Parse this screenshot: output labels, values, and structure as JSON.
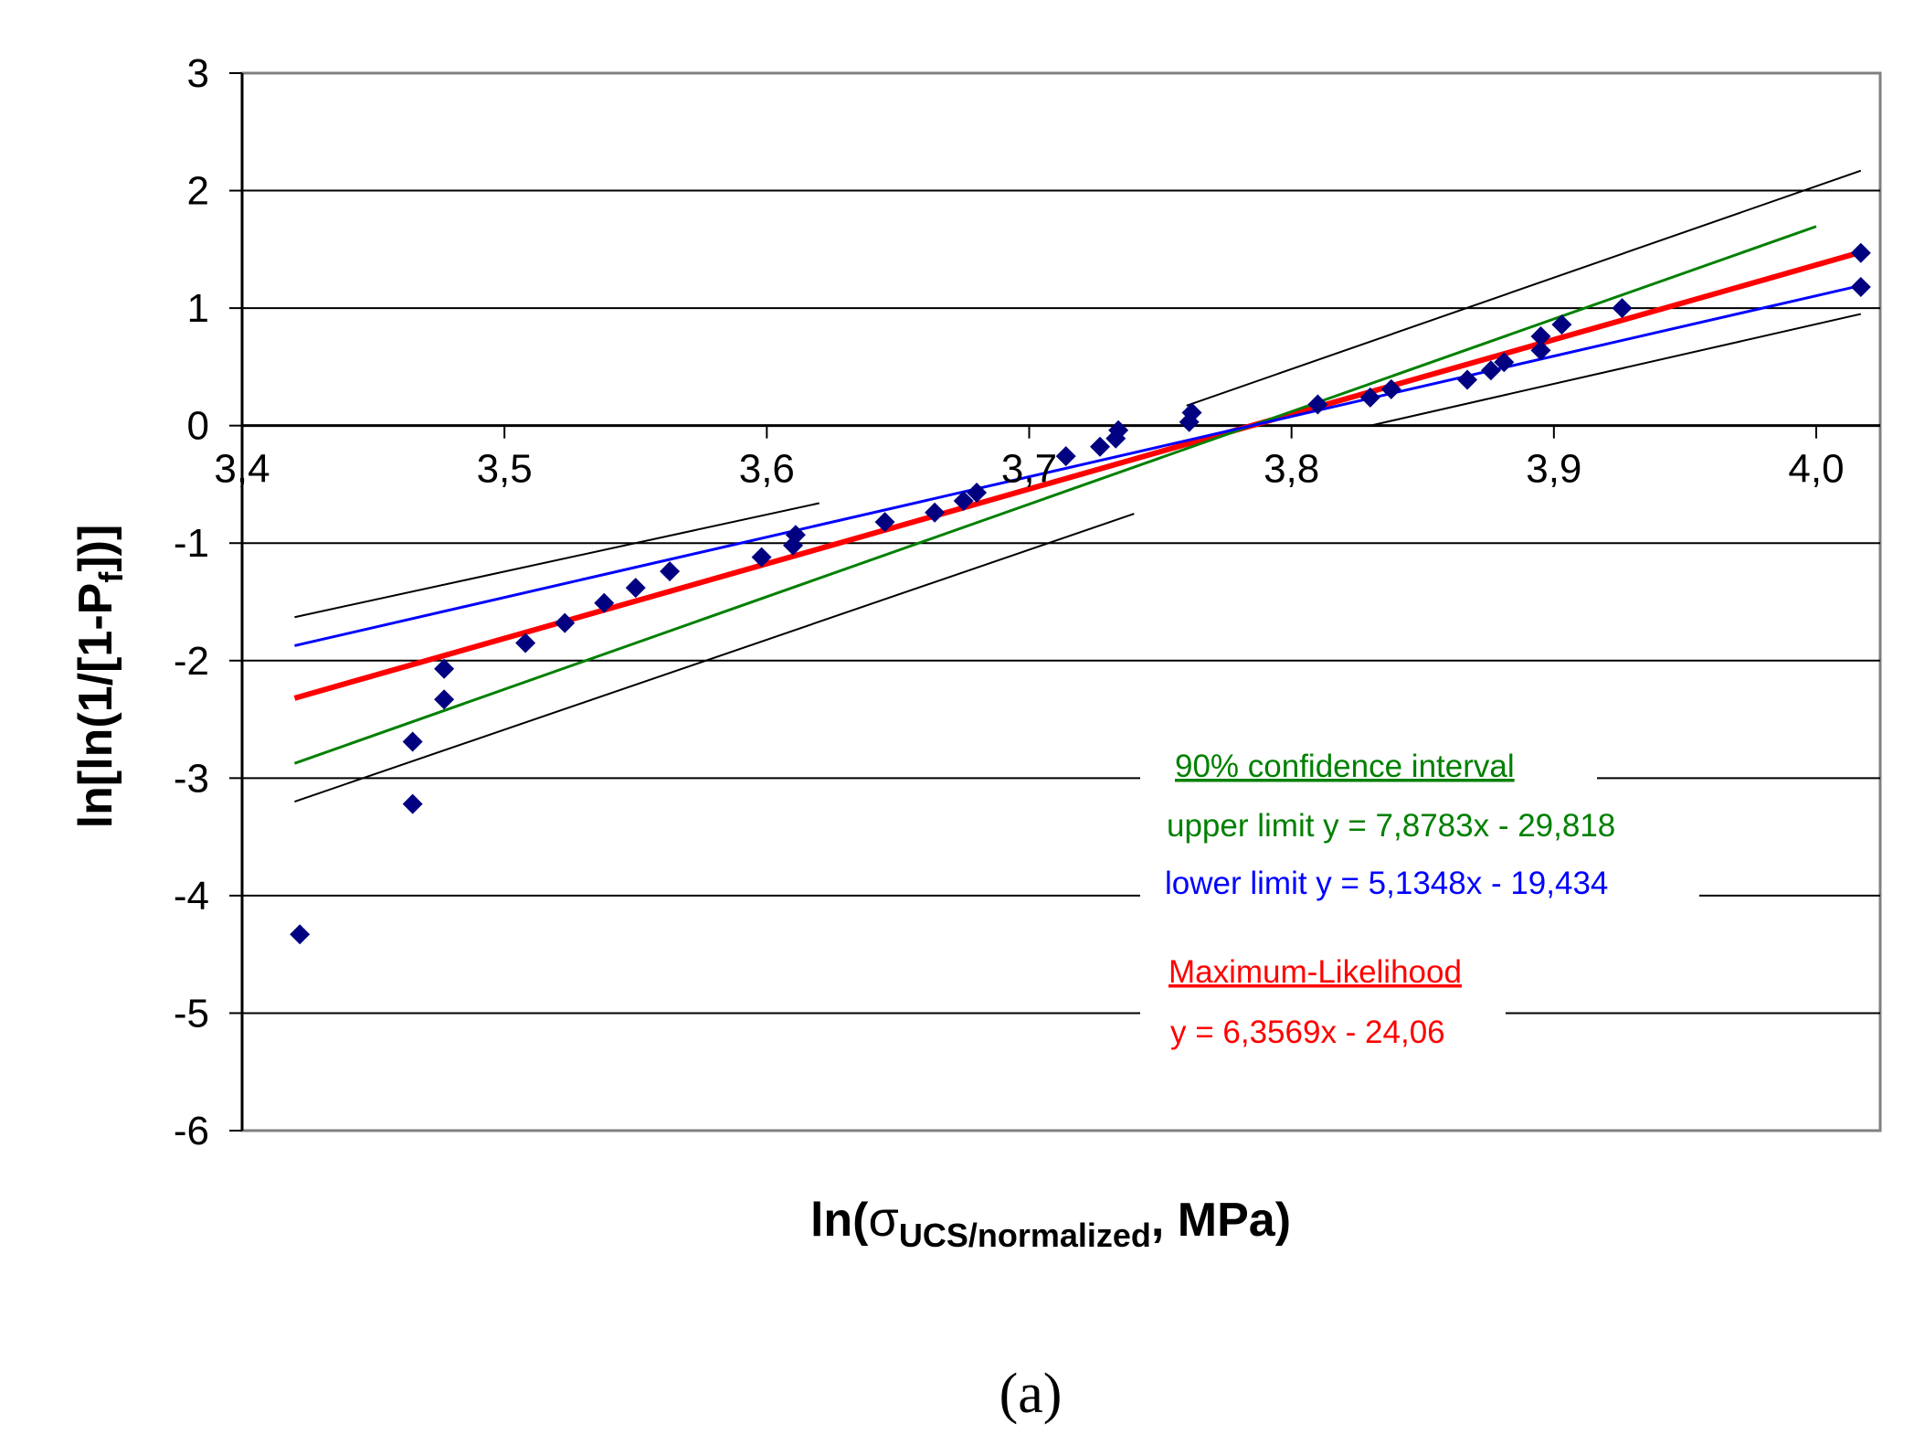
{
  "chart_data": {
    "type": "scatter",
    "xlabel_prefix": "ln(",
    "xlabel_sigma": "σ",
    "xlabel_sub": "UCS/normalized",
    "xlabel_suffix": ",  MPa)",
    "ylabel_prefix": "ln[ln(1/[1-P",
    "ylabel_sub": "f",
    "ylabel_suffix": "])]",
    "xlim": [
      3.4,
      4.05
    ],
    "ylim": [
      -6,
      3
    ],
    "x_ticks": [
      "3,4",
      "3,5",
      "3,6",
      "3,7",
      "3,8",
      "3,9",
      "4,0"
    ],
    "x_tick_values": [
      3.4,
      3.5,
      3.6,
      3.7,
      3.8,
      3.9,
      4.0
    ],
    "y_ticks": [
      "3",
      "2",
      "1",
      "0",
      "-1",
      "-2",
      "-3",
      "-4",
      "-5",
      "-6"
    ],
    "y_tick_values": [
      3,
      2,
      1,
      0,
      -1,
      -2,
      -3,
      -4,
      -5,
      -6
    ],
    "grid": "horizontal",
    "points": [
      {
        "x": 3.422,
        "y": -4.33
      },
      {
        "x": 3.465,
        "y": -3.22
      },
      {
        "x": 3.465,
        "y": -2.69
      },
      {
        "x": 3.477,
        "y": -2.33
      },
      {
        "x": 3.477,
        "y": -2.07
      },
      {
        "x": 3.508,
        "y": -1.85
      },
      {
        "x": 3.523,
        "y": -1.68
      },
      {
        "x": 3.538,
        "y": -1.51
      },
      {
        "x": 3.55,
        "y": -1.38
      },
      {
        "x": 3.563,
        "y": -1.24
      },
      {
        "x": 3.598,
        "y": -1.12
      },
      {
        "x": 3.61,
        "y": -1.02
      },
      {
        "x": 3.611,
        "y": -0.93
      },
      {
        "x": 3.645,
        "y": -0.82
      },
      {
        "x": 3.664,
        "y": -0.74
      },
      {
        "x": 3.675,
        "y": -0.64
      },
      {
        "x": 3.68,
        "y": -0.57
      },
      {
        "x": 3.714,
        "y": -0.26
      },
      {
        "x": 3.727,
        "y": -0.18
      },
      {
        "x": 3.733,
        "y": -0.11
      },
      {
        "x": 3.734,
        "y": -0.04
      },
      {
        "x": 3.761,
        "y": 0.03
      },
      {
        "x": 3.762,
        "y": 0.11
      },
      {
        "x": 3.81,
        "y": 0.18
      },
      {
        "x": 3.83,
        "y": 0.24
      },
      {
        "x": 3.838,
        "y": 0.31
      },
      {
        "x": 3.867,
        "y": 0.39
      },
      {
        "x": 3.876,
        "y": 0.47
      },
      {
        "x": 3.881,
        "y": 0.54
      },
      {
        "x": 3.895,
        "y": 0.64
      },
      {
        "x": 3.895,
        "y": 0.76
      },
      {
        "x": 3.903,
        "y": 0.86
      },
      {
        "x": 3.926,
        "y": 1.0
      },
      {
        "x": 4.017,
        "y": 1.18
      },
      {
        "x": 4.017,
        "y": 1.47
      }
    ],
    "lines": [
      {
        "name": "Maximum-Likelihood",
        "slope": 6.3569,
        "intercept": -24.06,
        "x_start": 3.42,
        "x_end": 4.017,
        "color": "#ff0000",
        "width": 6
      },
      {
        "name": "upper limit",
        "slope": 7.8783,
        "intercept": -29.818,
        "x_start": 3.42,
        "x_end": 4.0,
        "color": "#008000",
        "width": 3
      },
      {
        "name": "lower limit",
        "slope": 5.1348,
        "intercept": -19.434,
        "x_start": 3.42,
        "x_end": 4.017,
        "color": "#0000ff",
        "width": 3
      },
      {
        "name": "confidence band upper",
        "segments": [
          [
            3.42,
            -1.63,
            3.62,
            -0.66
          ],
          [
            3.76,
            0.17,
            4.017,
            2.17
          ]
        ],
        "color": "#000000",
        "width": 2
      },
      {
        "name": "confidence band lower",
        "segments": [
          [
            3.42,
            -3.2,
            3.74,
            -0.75
          ],
          [
            3.83,
            0.0,
            4.017,
            0.95
          ]
        ],
        "color": "#000000",
        "width": 2
      }
    ],
    "annotations": [
      {
        "key": "ci_title",
        "text": "90% confidence interval",
        "color": "#008000",
        "underline": true
      },
      {
        "key": "upper",
        "text": "upper limit y = 7,8783x - 29,818",
        "color": "#008000",
        "underline": false
      },
      {
        "key": "lower",
        "text": "lower limit y = 5,1348x - 19,434",
        "color": "#0000ff",
        "underline": false
      },
      {
        "key": "ml_title",
        "text": "Maximum-Likelihood",
        "color": "#ff0000",
        "underline": true
      },
      {
        "key": "ml_eq",
        "text": "y = 6,3569x - 24,06",
        "color": "#ff0000",
        "underline": false
      }
    ],
    "marker_color": "#000080",
    "caption": "(a)"
  }
}
